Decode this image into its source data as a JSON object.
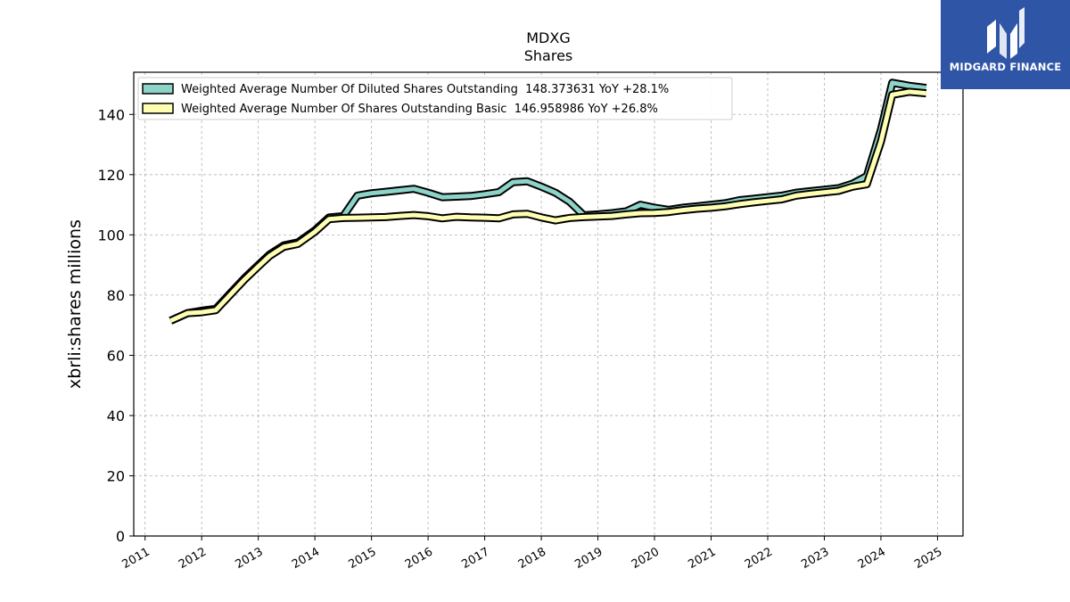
{
  "chart_data": {
    "type": "line",
    "title": "MDXG",
    "subtitle": "Shares",
    "ylabel": "xbrli:shares millions",
    "xlabel": "",
    "ylim": [
      0,
      154
    ],
    "yticks": [
      0,
      20,
      40,
      60,
      80,
      100,
      120,
      140
    ],
    "xlim": [
      2010.8,
      2025.45
    ],
    "xticks": [
      "2011",
      "2012",
      "2013",
      "2014",
      "2015",
      "2016",
      "2017",
      "2018",
      "2019",
      "2020",
      "2021",
      "2022",
      "2023",
      "2024",
      "2025"
    ],
    "grid": true,
    "legend_position": "top-left",
    "series": [
      {
        "name": "Weighted Average Number Of Diluted Shares Outstanding  148.373631 YoY +28.1%",
        "color": "#8dd3c7",
        "points": [
          [
            2011.45,
            71.5
          ],
          [
            2011.75,
            74.0
          ],
          [
            2012.0,
            74.8
          ],
          [
            2012.25,
            75.4
          ],
          [
            2012.5,
            80.5
          ],
          [
            2012.75,
            85.5
          ],
          [
            2013.0,
            90.0
          ],
          [
            2013.2,
            93.5
          ],
          [
            2013.45,
            96.5
          ],
          [
            2013.7,
            97.5
          ],
          [
            2014.0,
            101.5
          ],
          [
            2014.25,
            105.8
          ],
          [
            2014.5,
            106.2
          ],
          [
            2014.75,
            113.0
          ],
          [
            2015.0,
            113.8
          ],
          [
            2015.25,
            114.3
          ],
          [
            2015.5,
            114.8
          ],
          [
            2015.75,
            115.3
          ],
          [
            2016.0,
            114.0
          ],
          [
            2016.25,
            112.5
          ],
          [
            2016.5,
            112.7
          ],
          [
            2016.75,
            112.9
          ],
          [
            2017.0,
            113.5
          ],
          [
            2017.25,
            114.2
          ],
          [
            2017.5,
            117.5
          ],
          [
            2017.75,
            117.8
          ],
          [
            2018.0,
            116.0
          ],
          [
            2018.25,
            114.0
          ],
          [
            2018.5,
            111.0
          ],
          [
            2018.75,
            106.5
          ],
          [
            2019.0,
            106.8
          ],
          [
            2019.25,
            107.2
          ],
          [
            2019.5,
            107.8
          ],
          [
            2019.75,
            110.0
          ],
          [
            2020.0,
            109.0
          ],
          [
            2020.25,
            108.3
          ],
          [
            2020.5,
            109.0
          ],
          [
            2020.75,
            109.5
          ],
          [
            2021.0,
            110.0
          ],
          [
            2021.25,
            110.5
          ],
          [
            2021.5,
            111.5
          ],
          [
            2021.75,
            112.0
          ],
          [
            2022.0,
            112.5
          ],
          [
            2022.25,
            113.0
          ],
          [
            2022.5,
            114.0
          ],
          [
            2022.75,
            114.5
          ],
          [
            2023.0,
            115.0
          ],
          [
            2023.25,
            115.5
          ],
          [
            2023.5,
            117.0
          ],
          [
            2023.75,
            119.5
          ],
          [
            2024.0,
            135.0
          ],
          [
            2024.2,
            150.5
          ],
          [
            2024.5,
            149.5
          ],
          [
            2024.8,
            148.8
          ]
        ]
      },
      {
        "name": "Weighted Average Number Of Shares Outstanding Basic  146.958986 YoY +26.8%",
        "color": "#ffffb3",
        "points": [
          [
            2011.45,
            71.5
          ],
          [
            2011.75,
            74.0
          ],
          [
            2012.0,
            74.3
          ],
          [
            2012.25,
            75.0
          ],
          [
            2012.5,
            80.0
          ],
          [
            2012.75,
            85.0
          ],
          [
            2013.0,
            89.5
          ],
          [
            2013.2,
            93.0
          ],
          [
            2013.45,
            96.0
          ],
          [
            2013.7,
            97.0
          ],
          [
            2014.0,
            101.0
          ],
          [
            2014.25,
            105.2
          ],
          [
            2014.5,
            105.6
          ],
          [
            2014.75,
            105.7
          ],
          [
            2015.0,
            105.8
          ],
          [
            2015.25,
            105.9
          ],
          [
            2015.5,
            106.3
          ],
          [
            2015.75,
            106.6
          ],
          [
            2016.0,
            106.2
          ],
          [
            2016.25,
            105.5
          ],
          [
            2016.5,
            106.0
          ],
          [
            2016.75,
            105.8
          ],
          [
            2017.0,
            105.7
          ],
          [
            2017.25,
            105.5
          ],
          [
            2017.5,
            106.8
          ],
          [
            2017.75,
            107.0
          ],
          [
            2018.0,
            105.8
          ],
          [
            2018.25,
            104.8
          ],
          [
            2018.5,
            105.6
          ],
          [
            2018.75,
            105.9
          ],
          [
            2019.0,
            106.1
          ],
          [
            2019.25,
            106.3
          ],
          [
            2019.5,
            106.8
          ],
          [
            2019.75,
            107.2
          ],
          [
            2020.0,
            107.3
          ],
          [
            2020.25,
            107.6
          ],
          [
            2020.5,
            108.2
          ],
          [
            2020.75,
            108.7
          ],
          [
            2021.0,
            109.0
          ],
          [
            2021.25,
            109.5
          ],
          [
            2021.5,
            110.2
          ],
          [
            2021.75,
            110.8
          ],
          [
            2022.0,
            111.3
          ],
          [
            2022.25,
            111.8
          ],
          [
            2022.5,
            113.0
          ],
          [
            2022.75,
            113.6
          ],
          [
            2023.0,
            114.1
          ],
          [
            2023.25,
            114.6
          ],
          [
            2023.5,
            116.0
          ],
          [
            2023.75,
            116.8
          ],
          [
            2024.0,
            131.0
          ],
          [
            2024.2,
            146.5
          ],
          [
            2024.5,
            147.5
          ],
          [
            2024.8,
            147.0
          ]
        ]
      }
    ]
  },
  "logo": {
    "text": "MIDGARD FINANCE",
    "background": "#2f56a6"
  }
}
